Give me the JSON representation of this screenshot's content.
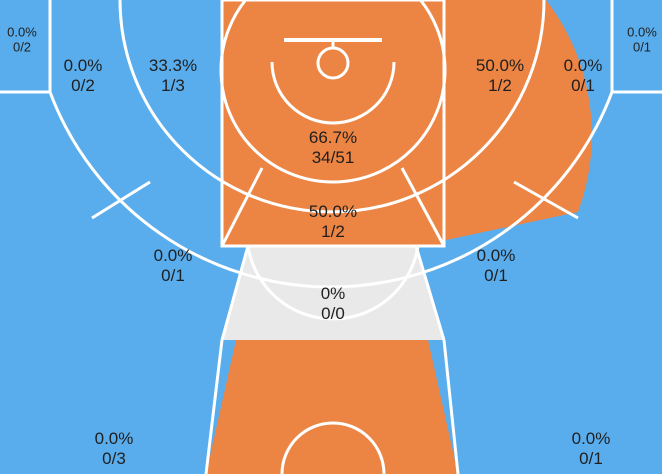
{
  "colors": {
    "blue": "#5aadec",
    "orange": "#ec8443",
    "gray": "#e9e9e9",
    "line": "#ffffff",
    "text": "#1f1f1f"
  },
  "zones": [
    {
      "id": "corner-left-top",
      "pct": "0.0%",
      "frac": "0/2"
    },
    {
      "id": "wing-three-left",
      "pct": "0.0%",
      "frac": "0/2"
    },
    {
      "id": "mid-left-top",
      "pct": "33.3%",
      "frac": "1/3"
    },
    {
      "id": "restricted-area",
      "pct": "66.7%",
      "frac": "34/51"
    },
    {
      "id": "paint-lower",
      "pct": "50.0%",
      "frac": "1/2"
    },
    {
      "id": "mid-right-top",
      "pct": "50.0%",
      "frac": "1/2"
    },
    {
      "id": "wing-three-right",
      "pct": "0.0%",
      "frac": "0/1"
    },
    {
      "id": "corner-right-top",
      "pct": "0.0%",
      "frac": "0/1"
    },
    {
      "id": "mid-left-elbow",
      "pct": "0.0%",
      "frac": "0/1"
    },
    {
      "id": "mid-right-elbow",
      "pct": "0.0%",
      "frac": "0/1"
    },
    {
      "id": "top-key",
      "pct": "0%",
      "frac": "0/0"
    },
    {
      "id": "three-left-bottom",
      "pct": "0.0%",
      "frac": "0/3"
    },
    {
      "id": "three-right-bottom",
      "pct": "0.0%",
      "frac": "0/1"
    }
  ]
}
